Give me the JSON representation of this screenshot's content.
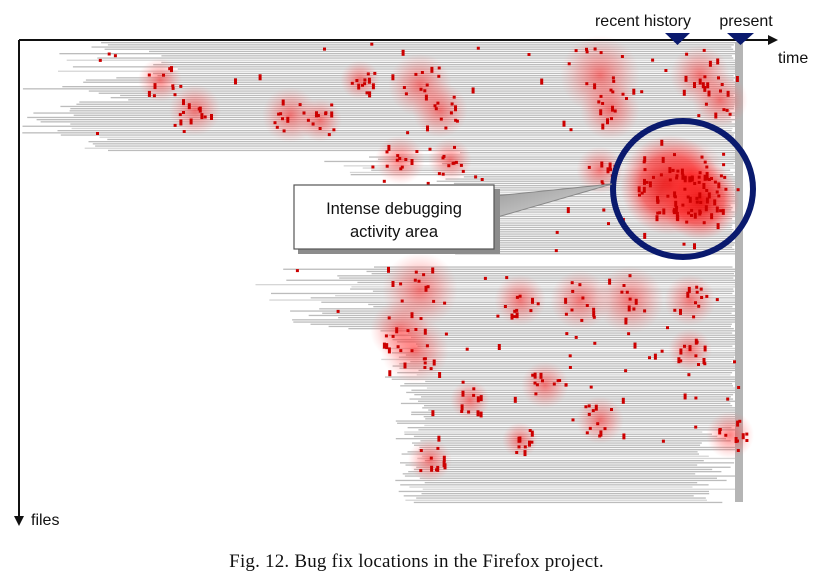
{
  "figure": {
    "marker_recent_history": "recent history",
    "marker_present": "present",
    "x_axis_label": "time",
    "y_axis_label": "files",
    "callout_line1": "Intense debugging",
    "callout_line2": "activity area",
    "caption": "Fig. 12.  Bug fix locations in the Firefox project."
  },
  "colors": {
    "axis": "#111111",
    "file_bar": "#bdbdbd",
    "bug_fix": "#cc0000",
    "density_halo": "#ff3333",
    "highlight_ring": "#0a1a6e"
  }
}
